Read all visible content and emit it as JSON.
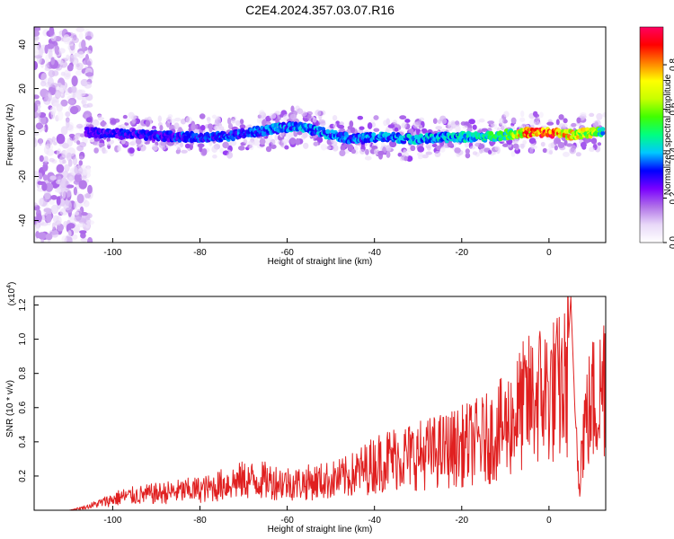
{
  "figure_title": "C2E4.2024.357.03.07.R16",
  "chart_data": [
    {
      "type": "heatmap",
      "xlabel": "Height of straight line (km)",
      "ylabel": "Frequency (Hz)",
      "xlim": [
        -118,
        13
      ],
      "ylim": [
        -50,
        48
      ],
      "x_ticks": [
        -100,
        -80,
        -60,
        -40,
        -20,
        0
      ],
      "y_ticks": [
        -40,
        -20,
        0,
        20,
        40
      ],
      "colorbar": {
        "label": "Normalized spectral amplitude",
        "range": [
          0,
          0.97
        ],
        "ticks": [
          0.0,
          0.2,
          0.4,
          0.6,
          0.8
        ],
        "colormap": [
          "#ffffff",
          "#e8d8f8",
          "#b070e8",
          "#7a00ff",
          "#0000ff",
          "#00c8ff",
          "#00ff80",
          "#40ff00",
          "#c8ff00",
          "#ffff00",
          "#ff8000",
          "#ff0000",
          "#ff0060"
        ]
      },
      "ridge_track": [
        {
          "x": -104,
          "f": 0,
          "amp": 0.3
        },
        {
          "x": -95,
          "f": -1,
          "amp": 0.32
        },
        {
          "x": -85,
          "f": -2,
          "amp": 0.35
        },
        {
          "x": -75,
          "f": -2,
          "amp": 0.35
        },
        {
          "x": -65,
          "f": 1,
          "amp": 0.38
        },
        {
          "x": -58,
          "f": 3,
          "amp": 0.4
        },
        {
          "x": -52,
          "f": 0,
          "amp": 0.4
        },
        {
          "x": -45,
          "f": -3,
          "amp": 0.38
        },
        {
          "x": -38,
          "f": -2,
          "amp": 0.4
        },
        {
          "x": -30,
          "f": -3,
          "amp": 0.42
        },
        {
          "x": -22,
          "f": -2,
          "amp": 0.44
        },
        {
          "x": -15,
          "f": -2,
          "amp": 0.48
        },
        {
          "x": -10,
          "f": -1,
          "amp": 0.55
        },
        {
          "x": -5,
          "f": 0,
          "amp": 0.85
        },
        {
          "x": 0,
          "f": 0,
          "amp": 0.95
        },
        {
          "x": 5,
          "f": -1,
          "amp": 0.75
        },
        {
          "x": 10,
          "f": 0,
          "amp": 0.7
        },
        {
          "x": 12,
          "f": 0,
          "amp": 0.5
        }
      ]
    },
    {
      "type": "line",
      "xlabel": "Height of straight line (km)",
      "ylabel": "SNR (10 * v/v)",
      "y_multiplier": "(x10",
      "y_multiplier_exp": "4",
      "y_multiplier_close": ")",
      "xlim": [
        -118,
        13
      ],
      "ylim": [
        0,
        1.25
      ],
      "x_ticks": [
        -100,
        -80,
        -60,
        -40,
        -20,
        0
      ],
      "y_ticks": [
        0.2,
        0.4,
        0.6,
        0.8,
        1.0,
        1.2
      ],
      "series": [
        {
          "color": "#e02020",
          "x": [
            -118,
            -110,
            -106,
            -102,
            -98,
            -94,
            -90,
            -86,
            -82,
            -78,
            -74,
            -70,
            -66,
            -62,
            -58,
            -54,
            -50,
            -46,
            -42,
            -38,
            -34,
            -30,
            -26,
            -22,
            -18,
            -14,
            -10,
            -6,
            -2,
            2,
            4,
            5,
            6,
            7,
            8,
            10,
            12,
            13
          ],
          "y": [
            0.0,
            0.0,
            0.02,
            0.05,
            0.08,
            0.09,
            0.1,
            0.11,
            0.12,
            0.13,
            0.16,
            0.18,
            0.18,
            0.17,
            0.16,
            0.17,
            0.18,
            0.2,
            0.25,
            0.3,
            0.32,
            0.33,
            0.35,
            0.37,
            0.4,
            0.43,
            0.5,
            0.62,
            0.7,
            0.72,
            0.75,
            1.25,
            0.55,
            0.2,
            0.5,
            0.65,
            0.7,
            0.9
          ]
        }
      ]
    }
  ]
}
